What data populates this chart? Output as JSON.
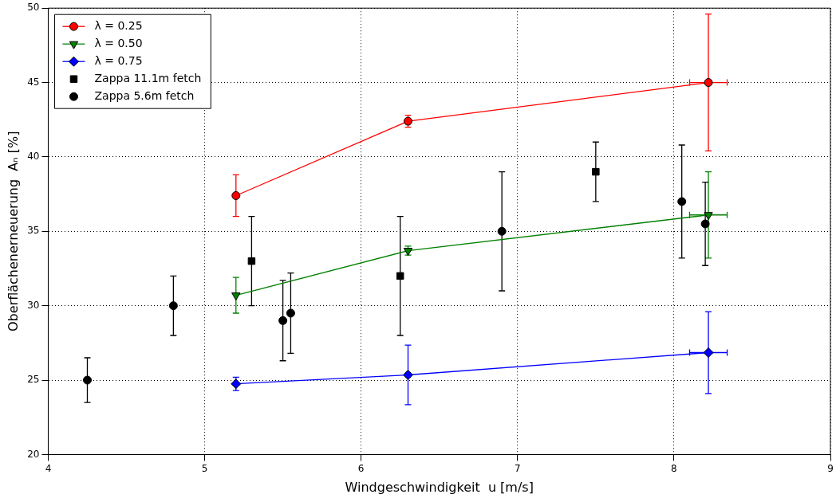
{
  "chart_data": {
    "type": "scatter",
    "xlabel": "Windgeschwindigkeit  u [m/s]",
    "ylabel": "Oberflächenerneuerung  Aₙ [%]",
    "xlim": [
      4,
      9
    ],
    "xticks": [
      4,
      5,
      6,
      7,
      8,
      9
    ],
    "ylim": [
      20,
      50
    ],
    "yticks": [
      20,
      25,
      30,
      35,
      40,
      45,
      50
    ],
    "grid": true,
    "legend": "top left",
    "series": [
      {
        "name": "λ = 0.25",
        "type": "line",
        "marker": "circle",
        "color": "#ff0000",
        "x": [
          5.2,
          6.3,
          8.22
        ],
        "values": [
          37.4,
          42.4,
          45.0
        ],
        "errors": [
          1.4,
          0.4,
          4.6
        ],
        "xerrors": [
          null,
          null,
          0.12
        ]
      },
      {
        "name": "λ = 0.50",
        "type": "line",
        "marker": "triangle",
        "color": "#008000",
        "x": [
          5.2,
          6.3,
          8.22
        ],
        "values": [
          30.7,
          33.7,
          36.1
        ],
        "errors": [
          1.2,
          0.3,
          2.9
        ],
        "xerrors": [
          null,
          null,
          0.12
        ]
      },
      {
        "name": "λ = 0.75",
        "type": "line",
        "marker": "diamond",
        "color": "#0000ff",
        "x": [
          5.2,
          6.3,
          8.22
        ],
        "values": [
          24.75,
          25.35,
          26.85
        ],
        "errors": [
          0.45,
          2.0,
          2.75
        ],
        "xerrors": [
          null,
          null,
          0.12
        ]
      },
      {
        "name": "Zappa 11.1m fetch",
        "type": "scatter",
        "marker": "square",
        "color": "#000000",
        "x": [
          5.3,
          6.25,
          7.5
        ],
        "values": [
          33,
          32,
          39
        ],
        "errors": [
          3,
          4,
          2
        ]
      },
      {
        "name": "Zappa 5.6m fetch",
        "type": "scatter",
        "marker": "circle",
        "color": "#000000",
        "x": [
          4.25,
          4.8,
          5.5,
          5.55,
          6.9,
          8.05,
          8.2
        ],
        "values": [
          25,
          30,
          29,
          29.5,
          35,
          37,
          35.5
        ],
        "errors": [
          1.5,
          2,
          2.7,
          2.7,
          4,
          3.8,
          2.8
        ]
      }
    ]
  }
}
